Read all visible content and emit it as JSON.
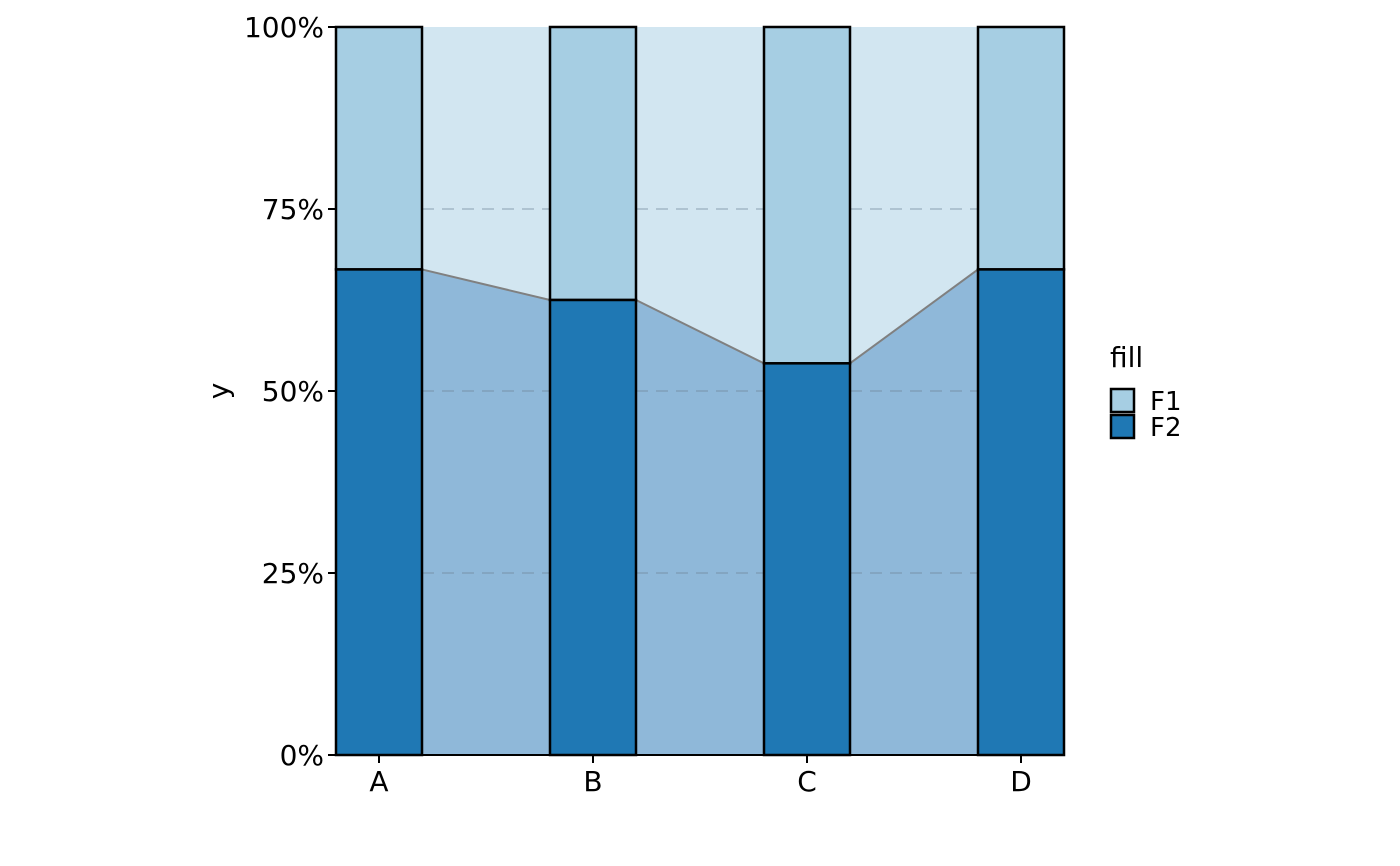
{
  "chart_data": {
    "type": "bar",
    "stacked": true,
    "normalized": true,
    "categories": [
      "A",
      "B",
      "C",
      "D"
    ],
    "series": [
      {
        "name": "F1",
        "values": [
          0.333,
          0.375,
          0.462,
          0.333
        ],
        "color": "#a6cee3"
      },
      {
        "name": "F2",
        "values": [
          0.667,
          0.625,
          0.538,
          0.667
        ],
        "color": "#1f78b4"
      }
    ],
    "ylabel": "y",
    "xlabel": "",
    "ylim": [
      0,
      1
    ],
    "yticks": [
      {
        "value": 0,
        "label": "0%"
      },
      {
        "value": 0.25,
        "label": "25%"
      },
      {
        "value": 0.5,
        "label": "50%"
      },
      {
        "value": 0.75,
        "label": "75%"
      },
      {
        "value": 1,
        "label": "100%"
      }
    ],
    "connector_areas": true,
    "grid": "dashed horizontal",
    "legend": {
      "title": "fill",
      "placement": "right"
    }
  }
}
